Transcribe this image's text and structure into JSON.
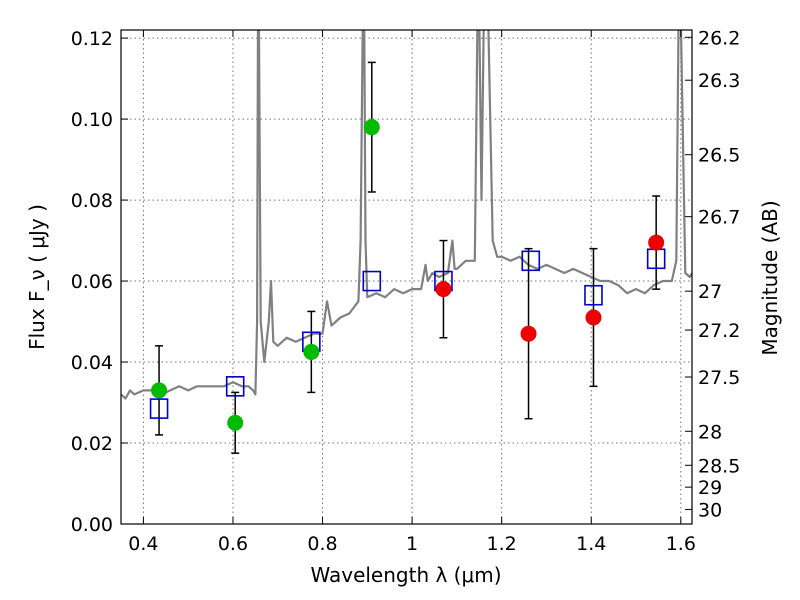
{
  "chart_data": {
    "type": "scatter",
    "title": "",
    "xlabel": "Wavelength  λ (μm)",
    "ylabel": "Flux  F_ν  ( μJy )",
    "ylabel_right": "Magnitude (AB)",
    "xlim": [
      0.35,
      1.625
    ],
    "ylim": [
      0.0,
      0.122
    ],
    "grid": true,
    "x_ticks": [
      0.4,
      0.6,
      0.8,
      1.0,
      1.2,
      1.4,
      1.6
    ],
    "x_tick_labels": [
      "0.4",
      "0.6",
      "0.8",
      "1",
      "1.2",
      "1.4",
      "1.6"
    ],
    "y_ticks": [
      0.0,
      0.02,
      0.04,
      0.06,
      0.08,
      0.1,
      0.12
    ],
    "y_tick_labels": [
      "0.00",
      "0.02",
      "0.04",
      "0.06",
      "0.08",
      "0.10",
      "0.12"
    ],
    "magnitude_ticks": [
      {
        "label": "26.2",
        "flux": 0.1202
      },
      {
        "label": "26.3",
        "flux": 0.1096
      },
      {
        "label": "26.5",
        "flux": 0.0912
      },
      {
        "label": "26.7",
        "flux": 0.0759
      },
      {
        "label": "27",
        "flux": 0.0575
      },
      {
        "label": "27.2",
        "flux": 0.0479
      },
      {
        "label": "27.5",
        "flux": 0.0363
      },
      {
        "label": "28",
        "flux": 0.0229
      },
      {
        "label": "28.5",
        "flux": 0.0145
      },
      {
        "label": "29",
        "flux": 0.0091
      },
      {
        "label": "30",
        "flux": 0.0036
      }
    ],
    "series": [
      {
        "kind": "spectrum",
        "color": "#808080",
        "x": [
          0.35,
          0.36,
          0.37,
          0.38,
          0.4,
          0.42,
          0.44,
          0.46,
          0.48,
          0.5,
          0.52,
          0.54,
          0.56,
          0.58,
          0.6,
          0.62,
          0.635,
          0.645,
          0.65,
          0.654,
          0.656,
          0.658,
          0.662,
          0.67,
          0.68,
          0.685,
          0.69,
          0.7,
          0.72,
          0.74,
          0.76,
          0.78,
          0.8,
          0.81,
          0.82,
          0.83,
          0.84,
          0.86,
          0.88,
          0.885,
          0.89,
          0.893,
          0.896,
          0.9,
          0.92,
          0.94,
          0.96,
          0.98,
          1.0,
          1.02,
          1.03,
          1.035,
          1.045,
          1.06,
          1.08,
          1.09,
          1.095,
          1.1,
          1.12,
          1.14,
          1.146,
          1.15,
          1.155,
          1.16,
          1.17,
          1.18,
          1.19,
          1.2,
          1.22,
          1.24,
          1.26,
          1.28,
          1.3,
          1.32,
          1.34,
          1.36,
          1.38,
          1.4,
          1.42,
          1.44,
          1.46,
          1.48,
          1.5,
          1.52,
          1.54,
          1.56,
          1.58,
          1.59,
          1.595,
          1.6,
          1.61,
          1.62,
          1.625
        ],
        "y": [
          0.032,
          0.031,
          0.033,
          0.032,
          0.033,
          0.033,
          0.032,
          0.033,
          0.034,
          0.033,
          0.034,
          0.034,
          0.034,
          0.034,
          0.035,
          0.034,
          0.034,
          0.033,
          0.032,
          0.05,
          0.125,
          0.125,
          0.05,
          0.04,
          0.05,
          0.06,
          0.045,
          0.044,
          0.046,
          0.045,
          0.046,
          0.047,
          0.047,
          0.055,
          0.049,
          0.05,
          0.051,
          0.052,
          0.055,
          0.07,
          0.125,
          0.125,
          0.07,
          0.056,
          0.057,
          0.056,
          0.058,
          0.057,
          0.058,
          0.058,
          0.064,
          0.06,
          0.062,
          0.061,
          0.062,
          0.07,
          0.063,
          0.063,
          0.065,
          0.065,
          0.125,
          0.125,
          0.08,
          0.125,
          0.125,
          0.07,
          0.066,
          0.066,
          0.065,
          0.066,
          0.064,
          0.063,
          0.064,
          0.063,
          0.062,
          0.063,
          0.062,
          0.061,
          0.06,
          0.06,
          0.059,
          0.057,
          0.058,
          0.057,
          0.059,
          0.06,
          0.06,
          0.065,
          0.125,
          0.125,
          0.062,
          0.061,
          0.062
        ]
      },
      {
        "kind": "model-points",
        "marker": "open-square",
        "color": "#0000c8",
        "x": [
          0.435,
          0.605,
          0.775,
          0.91,
          1.07,
          1.265,
          1.405,
          1.545
        ],
        "y": [
          0.0285,
          0.034,
          0.045,
          0.06,
          0.06,
          0.065,
          0.0565,
          0.0655
        ]
      },
      {
        "kind": "green-points",
        "marker": "filled-circle",
        "color": "#00bb00",
        "x": [
          0.435,
          0.605,
          0.775,
          0.91
        ],
        "y": [
          0.033,
          0.025,
          0.0425,
          0.098
        ],
        "yerr": [
          0.011,
          0.0075,
          0.01,
          0.016
        ]
      },
      {
        "kind": "red-points",
        "marker": "filled-circle",
        "color": "#ee0000",
        "x": [
          1.07,
          1.26,
          1.405,
          1.545
        ],
        "y": [
          0.058,
          0.047,
          0.051,
          0.0695
        ],
        "yerr": [
          0.012,
          0.021,
          0.017,
          0.0115
        ]
      }
    ]
  }
}
